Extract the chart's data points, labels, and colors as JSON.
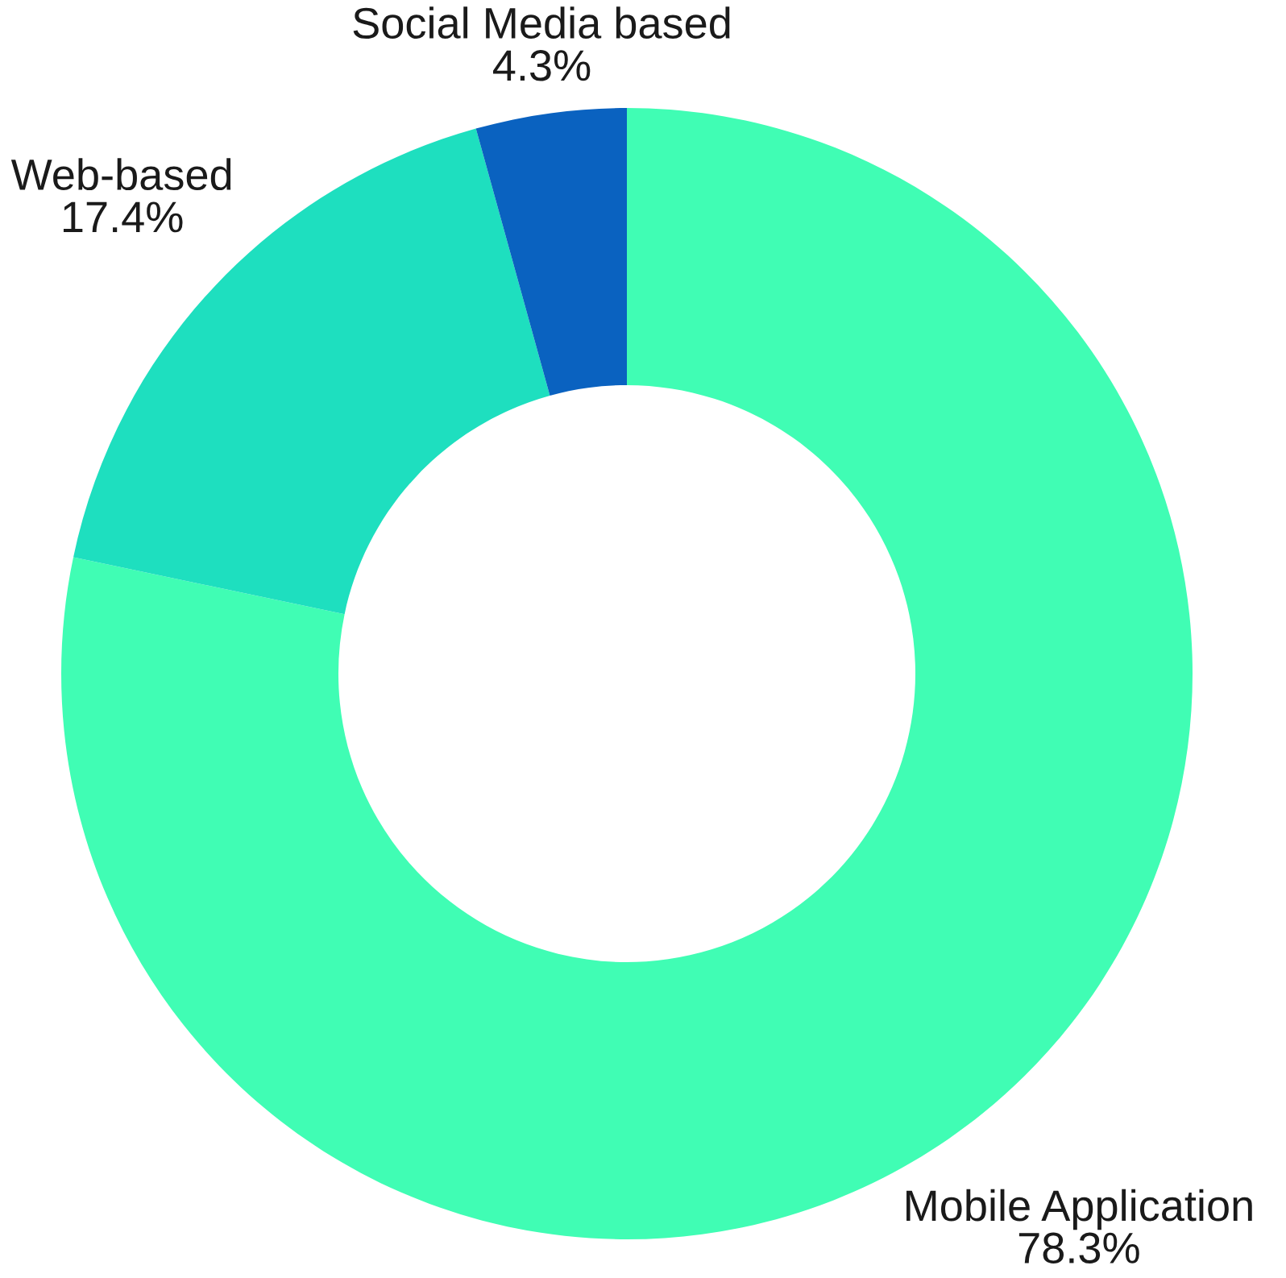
{
  "chart_data": {
    "type": "donut",
    "categories": [
      "Mobile Application",
      "Web-based",
      "Social Media based"
    ],
    "values": [
      78.3,
      17.4,
      4.3
    ],
    "value_labels": [
      "78.3%",
      "17.4%",
      "4.3%"
    ],
    "colors": [
      "#40fdb4",
      "#1edfbf",
      "#0a62c0"
    ]
  }
}
